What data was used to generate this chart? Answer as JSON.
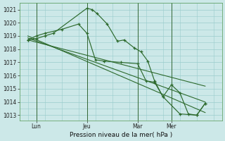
{
  "bg_color": "#cce8e8",
  "grid_color": "#99cccc",
  "line_color": "#2d6a2d",
  "ylabel_ticks": [
    1013,
    1014,
    1015,
    1016,
    1017,
    1018,
    1019,
    1020,
    1021
  ],
  "ylim": [
    1012.6,
    1021.5
  ],
  "xlabel": "Pression niveau de la mer( hPa )",
  "xtick_labels": [
    "Lun",
    "Jeu",
    "Mar",
    "Mer"
  ],
  "xtick_positions": [
    1,
    4,
    7,
    9
  ],
  "vlines_x": [
    1,
    4,
    7,
    9
  ],
  "xlim": [
    0,
    12
  ],
  "series1_x": [
    0.5,
    1.0,
    1.5,
    2.0,
    4.0,
    4.3,
    4.6,
    5.2,
    5.8,
    6.2,
    6.8,
    7.2,
    7.6,
    8.0,
    8.5,
    9.0,
    9.5,
    10.0,
    10.5,
    11.0
  ],
  "series1_y": [
    1018.7,
    1018.8,
    1019.0,
    1019.2,
    1021.1,
    1021.0,
    1020.7,
    1019.9,
    1018.6,
    1018.7,
    1018.1,
    1017.8,
    1017.1,
    1015.6,
    1014.4,
    1015.3,
    1014.7,
    1013.1,
    1013.0,
    1013.9
  ],
  "series2_x": [
    0.5,
    1.0,
    1.5,
    2.5,
    3.5,
    4.0,
    4.5,
    5.0,
    6.0,
    7.0,
    7.5,
    8.0,
    8.5,
    9.5,
    10.5,
    11.0
  ],
  "series2_y": [
    1018.7,
    1019.0,
    1019.2,
    1019.5,
    1019.9,
    1019.2,
    1017.2,
    1017.1,
    1017.0,
    1016.9,
    1015.6,
    1015.5,
    1014.4,
    1013.1,
    1013.0,
    1013.9
  ],
  "trend1_x": [
    0.5,
    11.0
  ],
  "trend1_y": [
    1019.0,
    1013.2
  ],
  "trend2_x": [
    0.5,
    11.0
  ],
  "trend2_y": [
    1018.85,
    1014.0
  ],
  "trend3_x": [
    0.5,
    11.0
  ],
  "trend3_y": [
    1018.7,
    1015.2
  ]
}
